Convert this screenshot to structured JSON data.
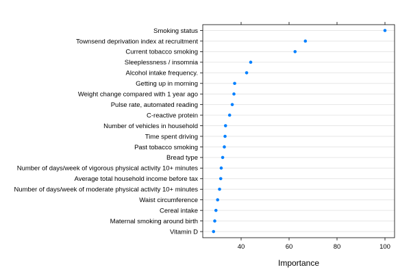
{
  "chart_data": {
    "type": "scatter",
    "title": "",
    "xlabel": "Importance",
    "ylabel": "",
    "xlim": [
      24,
      104
    ],
    "xticks": [
      40,
      60,
      80,
      100
    ],
    "grid": true,
    "legend": "none",
    "point_color": "#0080ff",
    "categories": [
      "Smoking status",
      "Townsend deprivation index at recruitment",
      "Current tobacco smoking",
      "Sleeplessness / insomnia",
      "Alcohol intake frequency.",
      "Getting up in morning",
      "Weight change compared with 1 year ago",
      "Pulse rate, automated reading",
      "C-reactive protein",
      "Number of vehicles in household",
      "Time spent driving",
      "Past tobacco smoking",
      "Bread type",
      "Number of days/week of vigorous physical activity 10+ minutes",
      "Average total household income before tax",
      "Number of days/week of moderate physical activity 10+ minutes",
      "Waist circumference",
      "Cereal intake",
      "Maternal smoking around birth",
      "Vitamin D"
    ],
    "values": [
      100,
      66.8,
      62.5,
      44,
      42.3,
      37.3,
      37,
      36.3,
      35.2,
      33.5,
      33.3,
      33,
      32.3,
      31.7,
      31.5,
      31,
      30.2,
      29.5,
      29,
      28.5
    ]
  }
}
